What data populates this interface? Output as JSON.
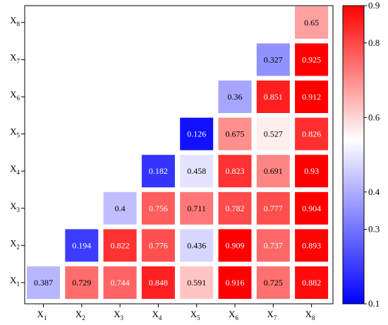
{
  "chart_data": {
    "type": "heatmap",
    "subtype": "lower-triangle correlation matrix",
    "x_categories": [
      "X1",
      "X2",
      "X3",
      "X4",
      "X5",
      "X6",
      "X7",
      "X8"
    ],
    "y_categories": [
      "X1",
      "X2",
      "X3",
      "X4",
      "X5",
      "X6",
      "X7",
      "X8"
    ],
    "cells": [
      {
        "x": "X1",
        "y": "X1",
        "value": 0.387,
        "label": "0.387"
      },
      {
        "x": "X2",
        "y": "X1",
        "value": 0.729,
        "label": "0.729"
      },
      {
        "x": "X3",
        "y": "X1",
        "value": 0.744,
        "label": "0.744"
      },
      {
        "x": "X4",
        "y": "X1",
        "value": 0.848,
        "label": "0.848"
      },
      {
        "x": "X5",
        "y": "X1",
        "value": 0.591,
        "label": "0.591"
      },
      {
        "x": "X6",
        "y": "X1",
        "value": 0.916,
        "label": "0.916"
      },
      {
        "x": "X7",
        "y": "X1",
        "value": 0.725,
        "label": "0.725"
      },
      {
        "x": "X8",
        "y": "X1",
        "value": 0.882,
        "label": "0.882"
      },
      {
        "x": "X2",
        "y": "X2",
        "value": 0.194,
        "label": "0.194"
      },
      {
        "x": "X3",
        "y": "X2",
        "value": 0.822,
        "label": "0.822"
      },
      {
        "x": "X4",
        "y": "X2",
        "value": 0.776,
        "label": "0.776"
      },
      {
        "x": "X5",
        "y": "X2",
        "value": 0.436,
        "label": "0.436"
      },
      {
        "x": "X6",
        "y": "X2",
        "value": 0.909,
        "label": "0.909"
      },
      {
        "x": "X7",
        "y": "X2",
        "value": 0.737,
        "label": "0.737"
      },
      {
        "x": "X8",
        "y": "X2",
        "value": 0.893,
        "label": "0.893"
      },
      {
        "x": "X3",
        "y": "X3",
        "value": 0.4,
        "label": "0.4"
      },
      {
        "x": "X4",
        "y": "X3",
        "value": 0.756,
        "label": "0.756"
      },
      {
        "x": "X5",
        "y": "X3",
        "value": 0.711,
        "label": "0.711"
      },
      {
        "x": "X6",
        "y": "X3",
        "value": 0.782,
        "label": "0.782"
      },
      {
        "x": "X7",
        "y": "X3",
        "value": 0.777,
        "label": "0.777"
      },
      {
        "x": "X8",
        "y": "X3",
        "value": 0.904,
        "label": "0.904"
      },
      {
        "x": "X4",
        "y": "X4",
        "value": 0.182,
        "label": "0.182"
      },
      {
        "x": "X5",
        "y": "X4",
        "value": 0.458,
        "label": "0.458"
      },
      {
        "x": "X6",
        "y": "X4",
        "value": 0.823,
        "label": "0.823"
      },
      {
        "x": "X7",
        "y": "X4",
        "value": 0.691,
        "label": "0.691"
      },
      {
        "x": "X8",
        "y": "X4",
        "value": 0.93,
        "label": "0.93"
      },
      {
        "x": "X5",
        "y": "X5",
        "value": 0.126,
        "label": "0.126"
      },
      {
        "x": "X6",
        "y": "X5",
        "value": 0.675,
        "label": "0.675"
      },
      {
        "x": "X7",
        "y": "X5",
        "value": 0.527,
        "label": "0.527"
      },
      {
        "x": "X8",
        "y": "X5",
        "value": 0.826,
        "label": "0.826"
      },
      {
        "x": "X6",
        "y": "X6",
        "value": 0.36,
        "label": "0.36"
      },
      {
        "x": "X7",
        "y": "X6",
        "value": 0.851,
        "label": "0.851"
      },
      {
        "x": "X8",
        "y": "X6",
        "value": 0.912,
        "label": "0.912"
      },
      {
        "x": "X7",
        "y": "X7",
        "value": 0.327,
        "label": "0.327"
      },
      {
        "x": "X8",
        "y": "X7",
        "value": 0.925,
        "label": "0.925"
      },
      {
        "x": "X8",
        "y": "X8",
        "value": 0.65,
        "label": "0.65"
      }
    ],
    "colorbar": {
      "min": 0.1,
      "max": 0.9,
      "ticks": [
        0.1,
        0.3,
        0.4,
        0.6,
        0.8,
        0.9
      ],
      "tick_labels": [
        "0.1",
        "0.3",
        "0.4",
        "0.6",
        "0.8",
        "0.9"
      ],
      "colormap": [
        "#0000ff",
        "#ffffff",
        "#ff0000"
      ],
      "placement": "right"
    },
    "colors": {
      "low": "#0000ff",
      "mid": "#ffffff",
      "high": "#ff0000"
    },
    "title": "",
    "xlabel": "",
    "ylabel": "",
    "grid": false
  }
}
